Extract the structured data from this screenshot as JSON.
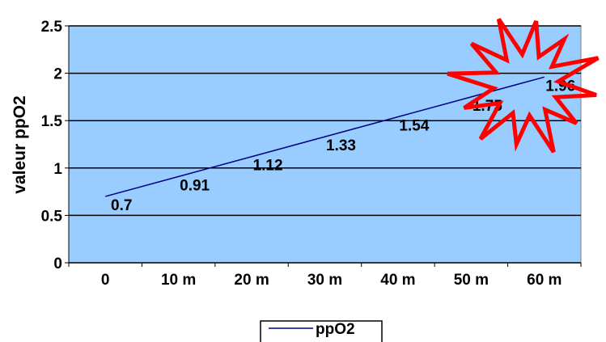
{
  "chart_data": {
    "type": "line",
    "categories": [
      "0",
      "10 m",
      "20 m",
      "30 m",
      "40 m",
      "50 m",
      "60 m"
    ],
    "series": [
      {
        "name": "ppO2",
        "values": [
          0.7,
          0.91,
          1.12,
          1.33,
          1.54,
          1.75,
          1.96
        ],
        "color": "#000080"
      }
    ],
    "data_labels": [
      "0.7",
      "0.91",
      "1.12",
      "1.33",
      "1.54",
      "1.75",
      "1.96"
    ],
    "y_ticks": [
      "0",
      "0.5",
      "1",
      "1.5",
      "2",
      "2.5"
    ],
    "ylabel": "valeur ppO2",
    "xlabel": "",
    "ylim": [
      0,
      2.5
    ],
    "grid": true,
    "legend": "bottom",
    "colors": {
      "plot_background": "#99ccff",
      "gridline": "#000000",
      "starburst": "#ff0000"
    }
  }
}
